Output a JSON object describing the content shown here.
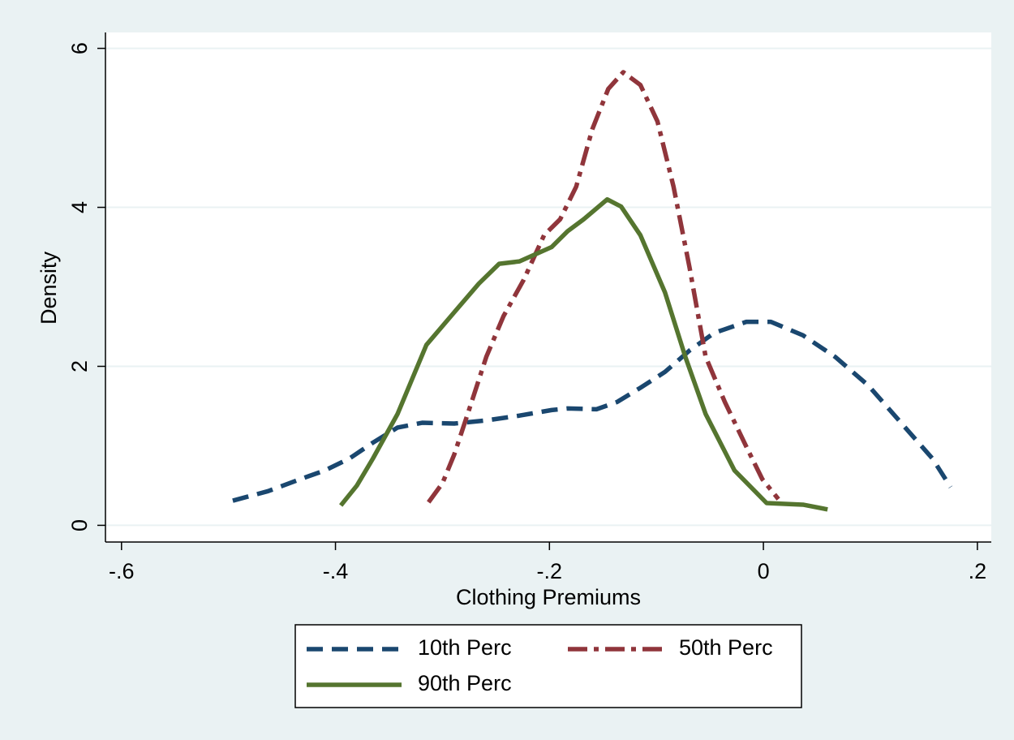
{
  "chart_data": {
    "type": "line",
    "x_label": "Clothing Premiums",
    "y_label": "Density",
    "xlim": [
      -0.615,
      0.213
    ],
    "ylim": [
      -0.21,
      6.2
    ],
    "xticks": [
      {
        "value": -0.6,
        "label": "-.6"
      },
      {
        "value": -0.4,
        "label": "-.4"
      },
      {
        "value": -0.2,
        "label": "-.2"
      },
      0,
      {
        "value": 0.2,
        "label": ".2"
      }
    ],
    "yticks": [
      0,
      2,
      4,
      6
    ],
    "grid": true,
    "legend": "bottom",
    "series": [
      {
        "name": "10th Perc",
        "color": "#1a476f",
        "dash": "dash",
        "x": [
          -0.496,
          -0.463,
          -0.433,
          -0.41,
          -0.387,
          -0.365,
          -0.342,
          -0.319,
          -0.289,
          -0.259,
          -0.228,
          -0.198,
          -0.183,
          -0.156,
          -0.137,
          -0.115,
          -0.092,
          -0.069,
          -0.046,
          -0.016,
          0.007,
          0.037,
          0.067,
          0.098,
          0.128,
          0.158,
          0.175
        ],
        "values": [
          0.31,
          0.43,
          0.58,
          0.69,
          0.84,
          1.04,
          1.23,
          1.29,
          1.28,
          1.32,
          1.38,
          1.45,
          1.47,
          1.46,
          1.55,
          1.73,
          1.93,
          2.2,
          2.42,
          2.56,
          2.56,
          2.39,
          2.12,
          1.76,
          1.3,
          0.84,
          0.48
        ]
      },
      {
        "name": "50th Perc",
        "color": "#90353b",
        "dash": "dashdot",
        "x": [
          -0.313,
          -0.3,
          -0.289,
          -0.274,
          -0.259,
          -0.243,
          -0.224,
          -0.205,
          -0.19,
          -0.175,
          -0.16,
          -0.145,
          -0.131,
          -0.115,
          -0.099,
          -0.084,
          -0.069,
          -0.054,
          -0.036,
          -0.016,
          -0.001,
          0.014
        ],
        "values": [
          0.29,
          0.53,
          0.89,
          1.5,
          2.12,
          2.63,
          3.09,
          3.65,
          3.85,
          4.26,
          4.98,
          5.49,
          5.7,
          5.54,
          5.08,
          4.26,
          3.24,
          2.12,
          1.55,
          0.99,
          0.58,
          0.33
        ]
      },
      {
        "name": "90th Perc",
        "color": "#55752f",
        "dash": "solid",
        "x": [
          -0.395,
          -0.38,
          -0.365,
          -0.342,
          -0.315,
          -0.289,
          -0.266,
          -0.247,
          -0.228,
          -0.198,
          -0.183,
          -0.168,
          -0.146,
          -0.133,
          -0.115,
          -0.092,
          -0.073,
          -0.054,
          -0.027,
          0.003,
          0.037,
          0.06
        ],
        "values": [
          0.25,
          0.5,
          0.84,
          1.4,
          2.27,
          2.68,
          3.04,
          3.29,
          3.32,
          3.5,
          3.7,
          3.85,
          4.1,
          4.01,
          3.65,
          2.93,
          2.12,
          1.4,
          0.69,
          0.28,
          0.26,
          0.2
        ]
      }
    ]
  }
}
